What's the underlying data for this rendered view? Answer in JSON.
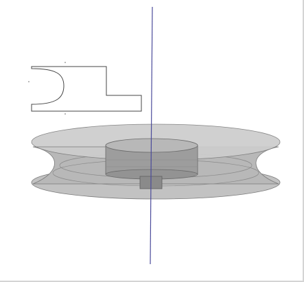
{
  "viewport": {
    "background": "#ffffff",
    "frame_color": "#d4d4d4"
  },
  "colors": {
    "axis_line": "#4a4a9a",
    "profile_stroke": "#444444",
    "body_fill": "#c8c8c8",
    "body_fill_dark": "#a9a9a9",
    "hub_fill": "#9a9a9a",
    "hub_top_fill": "#b5b5b5",
    "edge_stroke": "#6e6e6e",
    "shadow_fill": "#8f8f8f"
  },
  "objects": {
    "revolution_axis": "vertical-axis-line",
    "sketch_profile": "groove-profile-sketch",
    "revolved_body": "pulley-solid",
    "hub": "pulley-hub",
    "bore": "pulley-bore"
  }
}
